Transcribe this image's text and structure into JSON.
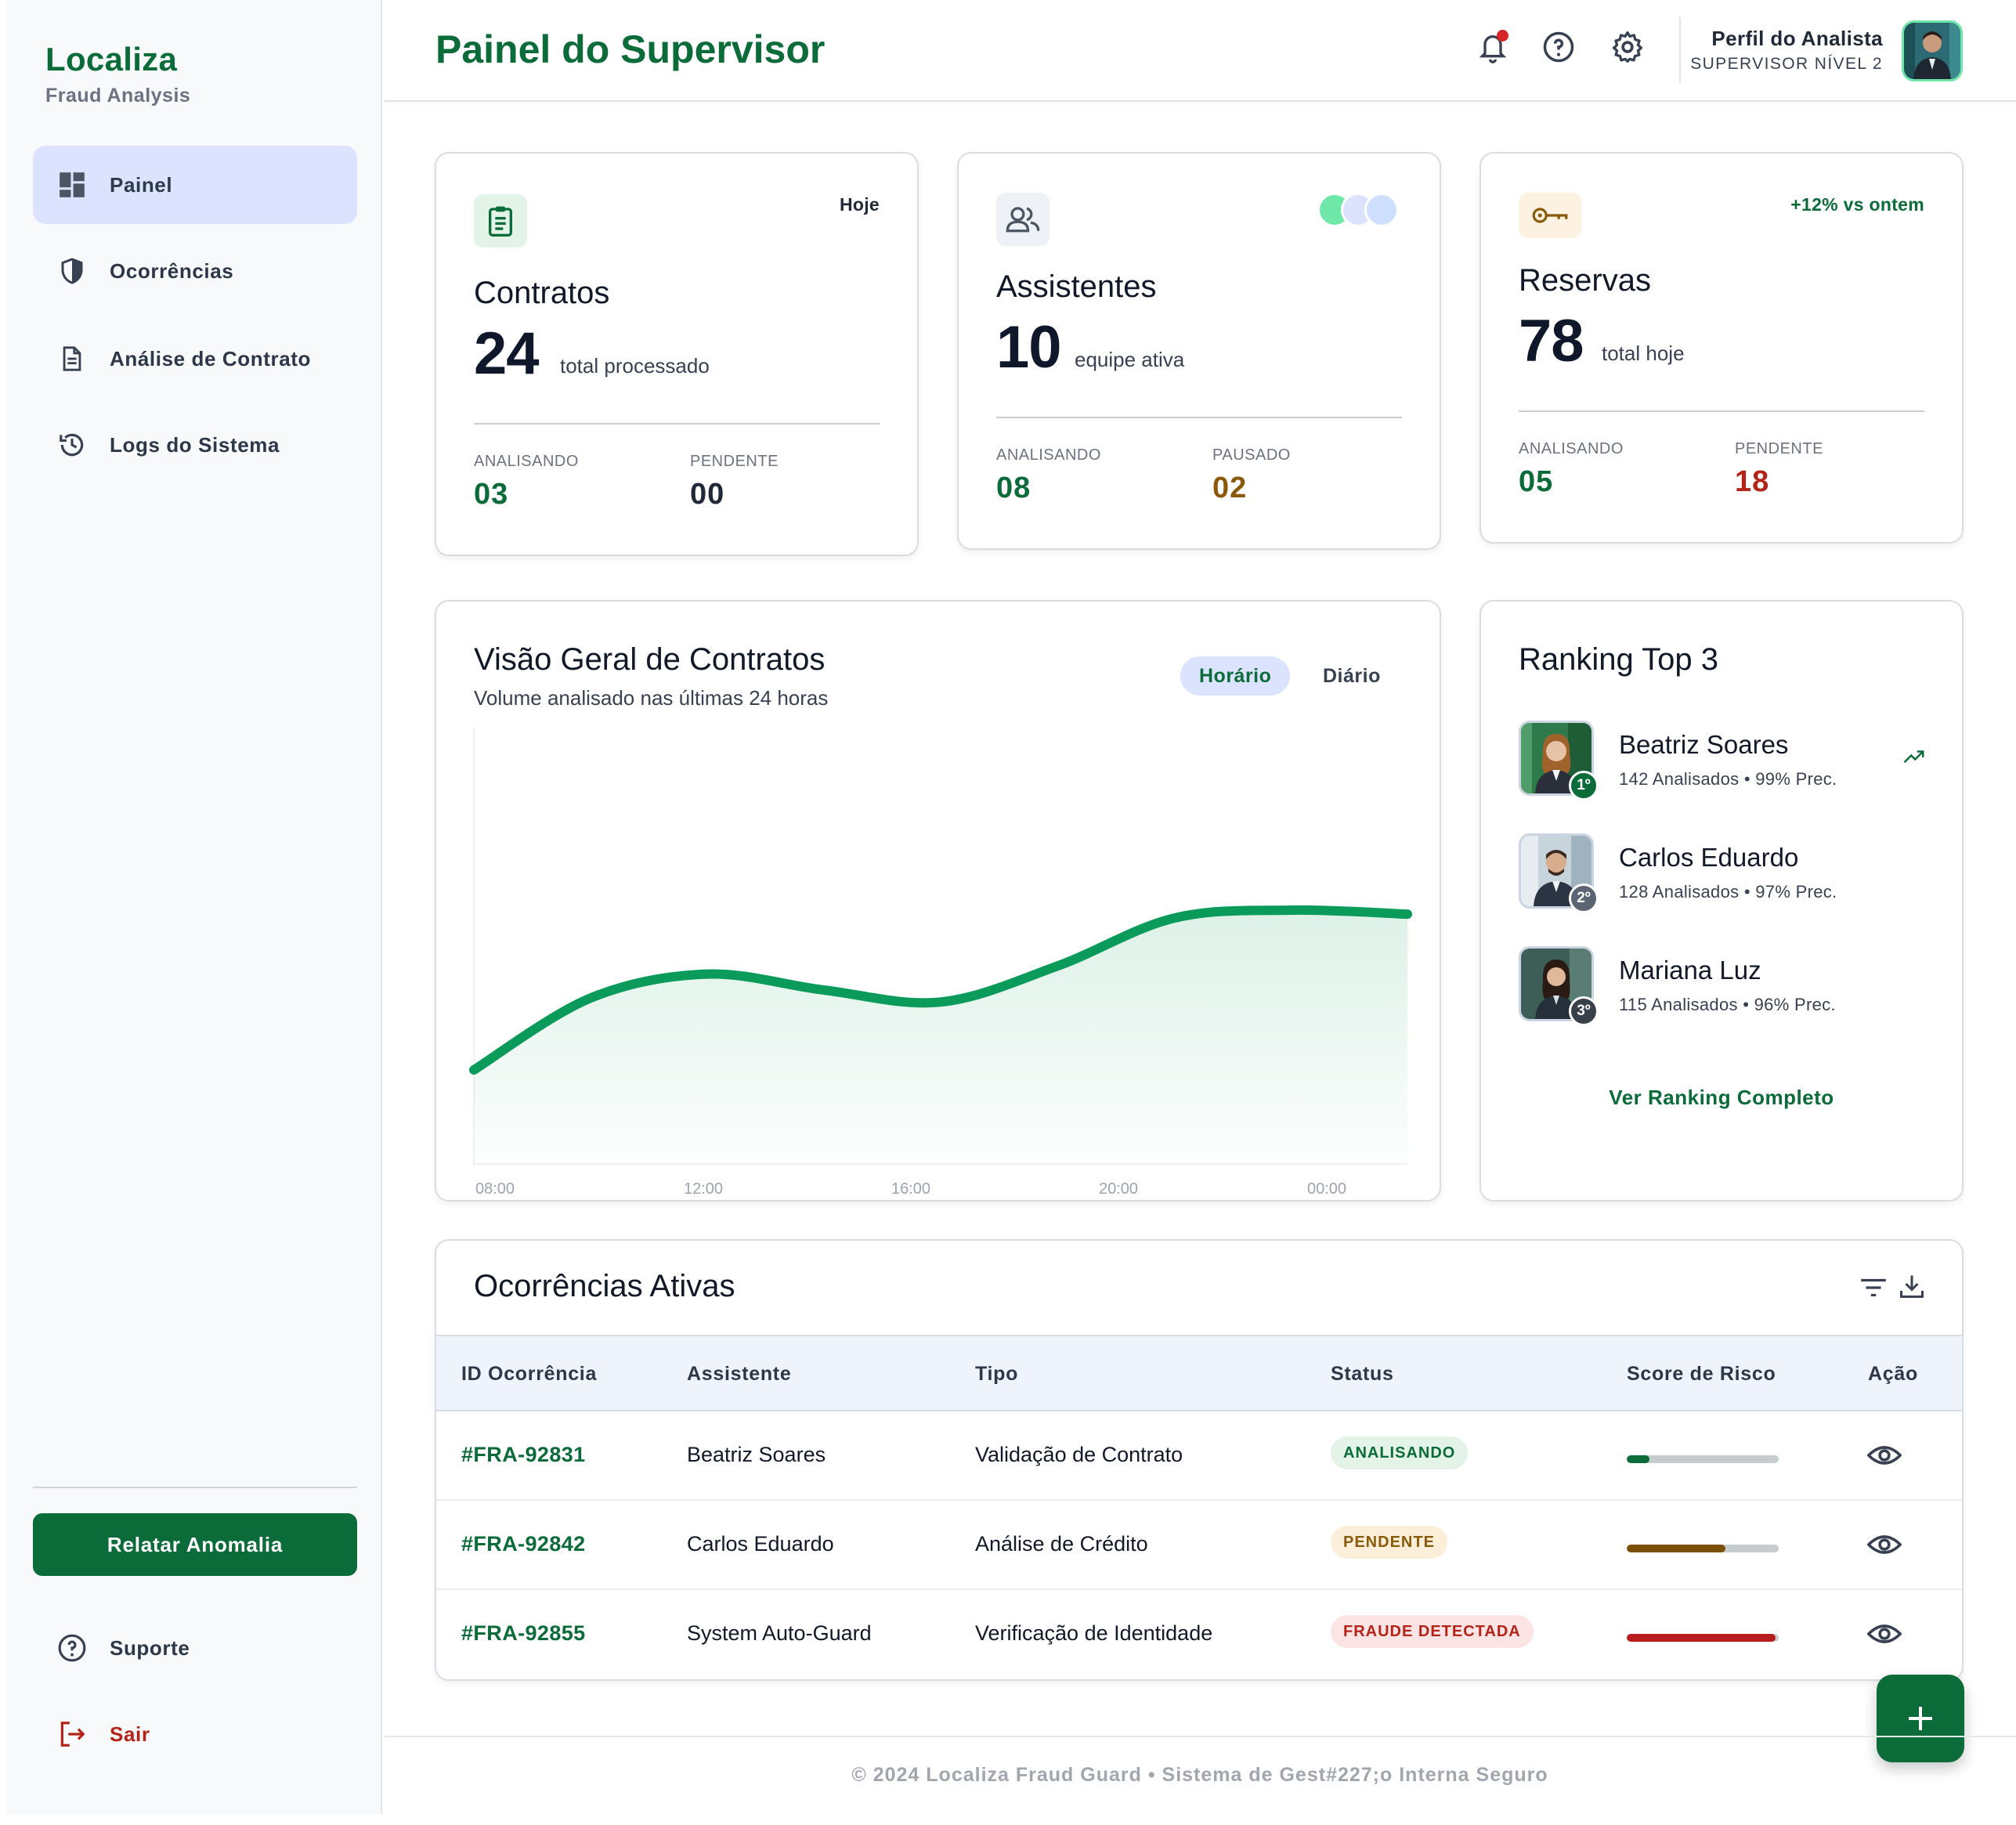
{
  "brand": {
    "title": "Localiza",
    "subtitle": "Fraud Analysis"
  },
  "sidebar": {
    "items": [
      {
        "label": "Painel",
        "icon": "dashboard-icon",
        "active": true
      },
      {
        "label": "Ocorrências",
        "icon": "shield-icon",
        "active": false
      },
      {
        "label": "Análise de Contrato",
        "icon": "document-icon",
        "active": false
      },
      {
        "label": "Logs do Sistema",
        "icon": "history-icon",
        "active": false
      }
    ],
    "report_button": "Relatar Anomalia",
    "support": "Suporte",
    "logout": "Sair"
  },
  "header": {
    "title": "Painel do Supervisor",
    "profile_name": "Perfil do Analista",
    "profile_role": "SUPERVISOR NÍVEL 2"
  },
  "stats": {
    "contratos": {
      "tag": "Hoje",
      "title": "Contratos",
      "value": "24",
      "unit": "total processado",
      "left_label": "ANALISANDO",
      "left_value": "03",
      "right_label": "PENDENTE",
      "right_value": "00"
    },
    "assistentes": {
      "title": "Assistentes",
      "value": "10",
      "unit": "equipe ativa",
      "left_label": "ANALISANDO",
      "left_value": "08",
      "right_label": "PAUSADO",
      "right_value": "02"
    },
    "reservas": {
      "tag": "+12% vs ontem",
      "title": "Reservas",
      "value": "78",
      "unit": "total hoje",
      "left_label": "ANALISANDO",
      "left_value": "05",
      "right_label": "PENDENTE",
      "right_value": "18"
    }
  },
  "overview": {
    "title": "Visão Geral de Contratos",
    "subtitle": "Volume analisado nas últimas 24 horas",
    "toggle_on": "Horário",
    "toggle_off": "Diário"
  },
  "chart_data": {
    "type": "area",
    "x": [
      "08:00",
      "10:00",
      "12:00",
      "14:00",
      "16:00",
      "18:00",
      "20:00",
      "22:00",
      "00:00"
    ],
    "values": [
      20,
      38,
      44,
      40,
      37,
      46,
      58,
      60,
      59
    ],
    "ylim": [
      0,
      100
    ],
    "tick_labels": [
      "08:00",
      "12:00",
      "16:00",
      "20:00",
      "00:00"
    ],
    "grid": false,
    "color": "#0a9b5a"
  },
  "ranking": {
    "title": "Ranking Top 3",
    "people": [
      {
        "name": "Beatriz Soares",
        "meta": "142 Analisados • 99% Prec.",
        "place": "1º",
        "badge_color": "#0b6b39"
      },
      {
        "name": "Carlos Eduardo",
        "meta": "128 Analisados • 97% Prec.",
        "place": "2º",
        "badge_color": "#5b6472"
      },
      {
        "name": "Mariana Luz",
        "meta": "115 Analisados • 96% Prec.",
        "place": "3º",
        "badge_color": "#3a4049"
      }
    ],
    "link": "Ver Ranking Completo"
  },
  "table": {
    "title": "Ocorrências Ativas",
    "columns": [
      "ID Ocorrência",
      "Assistente",
      "Tipo",
      "Status",
      "Score de Risco",
      "Ação"
    ],
    "rows": [
      {
        "id": "#FRA-92831",
        "assistant": "Beatriz Soares",
        "type": "Validação de Contrato",
        "status": "ANALISANDO",
        "risk": 0.15,
        "status_bg": "#e3f3e8",
        "status_fg": "#0b6b39",
        "risk_color": "#0b6b39"
      },
      {
        "id": "#FRA-92842",
        "assistant": "Carlos Eduardo",
        "type": "Análise de Crédito",
        "status": "PENDENTE",
        "risk": 0.65,
        "status_bg": "#fbefd9",
        "status_fg": "#8a5a0a",
        "risk_color": "#7a4f06"
      },
      {
        "id": "#FRA-92855",
        "assistant": "System Auto-Guard",
        "type": "Verificação de Identidade",
        "status": "FRAUDE DETECTADA",
        "risk": 0.98,
        "status_bg": "#fde4e4",
        "status_fg": "#b42318",
        "risk_color": "#b91c1c"
      }
    ]
  },
  "footer": "© 2024 Localiza Fraud Guard • Sistema de Gest#227;o Interna Seguro",
  "colors": {
    "brand": "#0b6b39",
    "accent_red": "#b42318",
    "accent_amber": "#8a5a0a"
  }
}
